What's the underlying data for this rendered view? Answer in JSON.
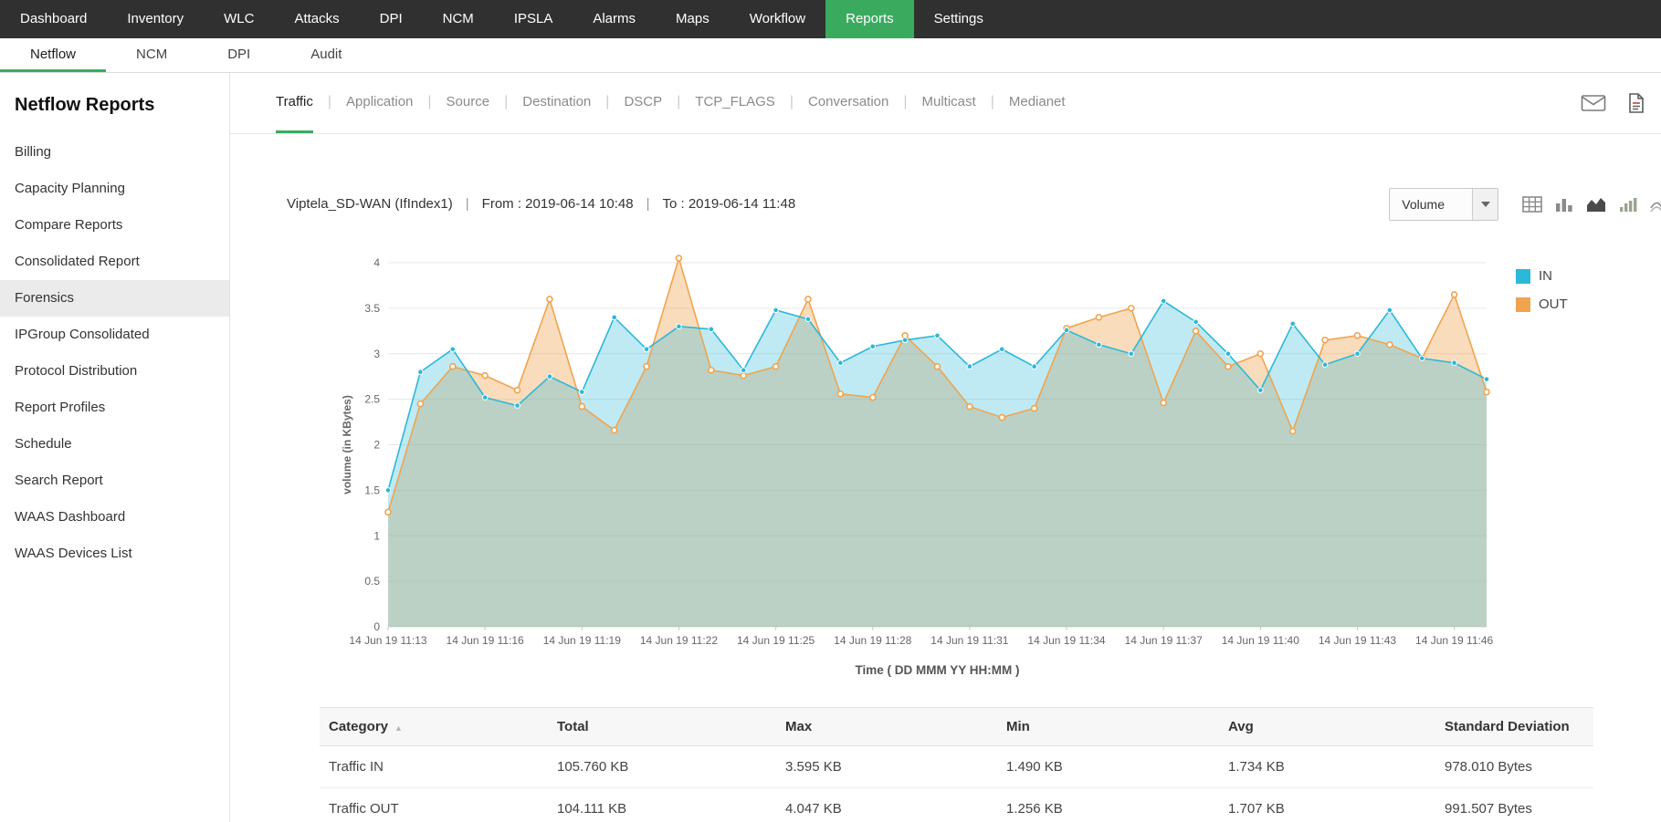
{
  "top_nav": {
    "items": [
      {
        "label": "Dashboard"
      },
      {
        "label": "Inventory"
      },
      {
        "label": "WLC"
      },
      {
        "label": "Attacks"
      },
      {
        "label": "DPI"
      },
      {
        "label": "NCM"
      },
      {
        "label": "IPSLA"
      },
      {
        "label": "Alarms"
      },
      {
        "label": "Maps"
      },
      {
        "label": "Workflow"
      },
      {
        "label": "Reports",
        "active": true
      },
      {
        "label": "Settings"
      }
    ]
  },
  "sub_nav": {
    "items": [
      {
        "label": "Netflow",
        "active": true
      },
      {
        "label": "NCM"
      },
      {
        "label": "DPI"
      },
      {
        "label": "Audit"
      }
    ]
  },
  "sidebar": {
    "title": "Netflow Reports",
    "items": [
      {
        "label": "Billing"
      },
      {
        "label": "Capacity Planning"
      },
      {
        "label": "Compare Reports"
      },
      {
        "label": "Consolidated Report"
      },
      {
        "label": "Forensics",
        "selected": true
      },
      {
        "label": "IPGroup Consolidated"
      },
      {
        "label": "Protocol Distribution"
      },
      {
        "label": "Report Profiles"
      },
      {
        "label": "Schedule"
      },
      {
        "label": "Search Report"
      },
      {
        "label": "WAAS Dashboard"
      },
      {
        "label": "WAAS Devices List"
      }
    ]
  },
  "report_tabs": {
    "separator": "|",
    "items": [
      {
        "label": "Traffic",
        "active": true
      },
      {
        "label": "Application"
      },
      {
        "label": "Source"
      },
      {
        "label": "Destination"
      },
      {
        "label": "DSCP"
      },
      {
        "label": "TCP_FLAGS"
      },
      {
        "label": "Conversation"
      },
      {
        "label": "Multicast"
      },
      {
        "label": "Medianet"
      }
    ]
  },
  "report_header": {
    "device": "Viptela_SD-WAN (IfIndex1)",
    "from": "From : 2019-06-14 10:48",
    "to": "To : 2019-06-14 11:48",
    "separator": "|"
  },
  "toolbar": {
    "metric_value": "Volume",
    "view_icons": [
      "table-view",
      "bar-chart",
      "area-chart",
      "column-chart",
      "line-chart"
    ],
    "action_icons": [
      "email",
      "pdf-export"
    ]
  },
  "chart_data": {
    "type": "area",
    "title": "",
    "xlabel": "Time ( DD MMM YY HH:MM )",
    "ylabel": "volume (in KBytes)",
    "ylim": [
      0,
      4
    ],
    "ytick_step": 0.5,
    "grid": "horizontal",
    "legend_position": "right",
    "x_tick_every": 3,
    "x": [
      "14 Jun 19 11:13",
      "14 Jun 19 11:14",
      "14 Jun 19 11:15",
      "14 Jun 19 11:16",
      "14 Jun 19 11:17",
      "14 Jun 19 11:18",
      "14 Jun 19 11:19",
      "14 Jun 19 11:20",
      "14 Jun 19 11:21",
      "14 Jun 19 11:22",
      "14 Jun 19 11:23",
      "14 Jun 19 11:24",
      "14 Jun 19 11:25",
      "14 Jun 19 11:26",
      "14 Jun 19 11:27",
      "14 Jun 19 11:28",
      "14 Jun 19 11:29",
      "14 Jun 19 11:30",
      "14 Jun 19 11:31",
      "14 Jun 19 11:32",
      "14 Jun 19 11:33",
      "14 Jun 19 11:34",
      "14 Jun 19 11:35",
      "14 Jun 19 11:36",
      "14 Jun 19 11:37",
      "14 Jun 19 11:38",
      "14 Jun 19 11:39",
      "14 Jun 19 11:40",
      "14 Jun 19 11:41",
      "14 Jun 19 11:42",
      "14 Jun 19 11:43",
      "14 Jun 19 11:44",
      "14 Jun 19 11:45",
      "14 Jun 19 11:46",
      "14 Jun 19 11:47"
    ],
    "series": [
      {
        "name": "IN",
        "color": "#2bb8d9",
        "fill": "rgba(43,184,217,0.30)",
        "marker": "filled",
        "values": [
          1.5,
          2.8,
          3.05,
          2.52,
          2.43,
          2.75,
          2.58,
          3.4,
          3.05,
          3.3,
          3.27,
          2.82,
          3.48,
          3.38,
          2.9,
          3.08,
          3.15,
          3.2,
          2.86,
          3.05,
          2.86,
          3.26,
          3.1,
          3.0,
          3.58,
          3.35,
          3.0,
          2.6,
          3.33,
          2.88,
          3.0,
          3.48,
          2.95,
          2.9,
          2.72
        ]
      },
      {
        "name": "OUT",
        "color": "#f0a44e",
        "fill": "rgba(240,164,78,0.38)",
        "marker": "hollow",
        "values": [
          1.26,
          2.45,
          2.86,
          2.76,
          2.6,
          3.6,
          2.42,
          2.16,
          2.86,
          4.05,
          2.82,
          2.76,
          2.86,
          3.6,
          2.56,
          2.52,
          3.2,
          2.86,
          2.42,
          2.3,
          2.4,
          3.28,
          3.4,
          3.5,
          2.46,
          3.25,
          2.86,
          3.0,
          2.15,
          3.15,
          3.2,
          3.1,
          2.95,
          3.65,
          2.58
        ]
      }
    ]
  },
  "stats_table": {
    "columns": [
      "Category",
      "Total",
      "Max",
      "Min",
      "Avg",
      "Standard Deviation"
    ],
    "rows": [
      [
        "Traffic IN",
        "105.760 KB",
        "3.595 KB",
        "1.490 KB",
        "1.734 KB",
        "978.010 Bytes"
      ],
      [
        "Traffic OUT",
        "104.111 KB",
        "4.047 KB",
        "1.256 KB",
        "1.707 KB",
        "991.507 Bytes"
      ]
    ]
  }
}
